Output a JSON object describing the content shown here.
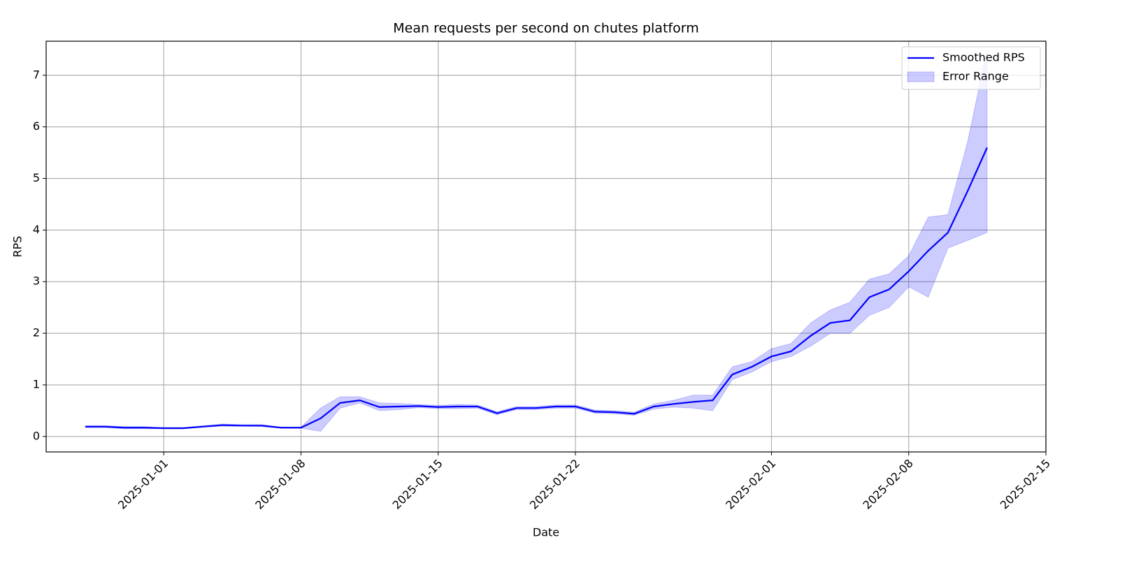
{
  "chart_data": {
    "type": "line",
    "title": "Mean requests per second on chutes platform",
    "x_label": "Date",
    "y_label": "RPS",
    "x": [
      "2024-12-28",
      "2024-12-29",
      "2024-12-30",
      "2024-12-31",
      "2025-01-01",
      "2025-01-02",
      "2025-01-03",
      "2025-01-04",
      "2025-01-05",
      "2025-01-06",
      "2025-01-07",
      "2025-01-08",
      "2025-01-09",
      "2025-01-10",
      "2025-01-11",
      "2025-01-12",
      "2025-01-13",
      "2025-01-14",
      "2025-01-15",
      "2025-01-16",
      "2025-01-17",
      "2025-01-18",
      "2025-01-19",
      "2025-01-20",
      "2025-01-21",
      "2025-01-22",
      "2025-01-23",
      "2025-01-24",
      "2025-01-25",
      "2025-01-26",
      "2025-01-27",
      "2025-01-28",
      "2025-01-29",
      "2025-01-30",
      "2025-01-31",
      "2025-02-01",
      "2025-02-02",
      "2025-02-03",
      "2025-02-04",
      "2025-02-05",
      "2025-02-06",
      "2025-02-07",
      "2025-02-08",
      "2025-02-09",
      "2025-02-10",
      "2025-02-11",
      "2025-02-12"
    ],
    "series": [
      {
        "name": "Smoothed RPS",
        "color": "#0000ff",
        "values": [
          0.19,
          0.19,
          0.17,
          0.17,
          0.16,
          0.16,
          0.19,
          0.22,
          0.21,
          0.21,
          0.17,
          0.17,
          0.35,
          0.65,
          0.7,
          0.57,
          0.58,
          0.59,
          0.57,
          0.58,
          0.58,
          0.45,
          0.55,
          0.55,
          0.58,
          0.58,
          0.48,
          0.47,
          0.44,
          0.58,
          0.63,
          0.67,
          0.7,
          1.2,
          1.35,
          1.55,
          1.65,
          1.95,
          2.2,
          2.25,
          2.7,
          2.85,
          3.2,
          3.6,
          3.95,
          4.75,
          5.6
        ]
      }
    ],
    "band": {
      "name": "Error Range",
      "color": "#0000ff",
      "opacity": 0.2,
      "lower": [
        0.17,
        0.17,
        0.15,
        0.15,
        0.15,
        0.15,
        0.18,
        0.2,
        0.2,
        0.19,
        0.16,
        0.16,
        0.1,
        0.55,
        0.65,
        0.5,
        0.52,
        0.56,
        0.54,
        0.54,
        0.55,
        0.42,
        0.52,
        0.52,
        0.55,
        0.55,
        0.45,
        0.44,
        0.41,
        0.53,
        0.57,
        0.55,
        0.5,
        1.1,
        1.25,
        1.45,
        1.55,
        1.75,
        2.0,
        2.0,
        2.35,
        2.5,
        2.9,
        2.7,
        3.65,
        3.8,
        3.95
      ],
      "upper": [
        0.21,
        0.21,
        0.19,
        0.19,
        0.17,
        0.17,
        0.21,
        0.24,
        0.23,
        0.23,
        0.18,
        0.18,
        0.55,
        0.77,
        0.77,
        0.65,
        0.64,
        0.62,
        0.6,
        0.62,
        0.61,
        0.48,
        0.58,
        0.58,
        0.61,
        0.61,
        0.51,
        0.5,
        0.47,
        0.63,
        0.7,
        0.8,
        0.8,
        1.35,
        1.45,
        1.7,
        1.8,
        2.2,
        2.45,
        2.6,
        3.05,
        3.15,
        3.5,
        4.25,
        4.3,
        5.7,
        7.5
      ]
    },
    "xlim": [
      "2024-12-26",
      "2025-02-15"
    ],
    "xticks": [
      "2025-01-01",
      "2025-01-08",
      "2025-01-15",
      "2025-01-22",
      "2025-02-01",
      "2025-02-08",
      "2025-02-15"
    ],
    "ylim": [
      -0.3,
      7.66
    ],
    "yticks": [
      0,
      1,
      2,
      3,
      4,
      5,
      6,
      7
    ],
    "grid": true,
    "legend": "upper right"
  }
}
